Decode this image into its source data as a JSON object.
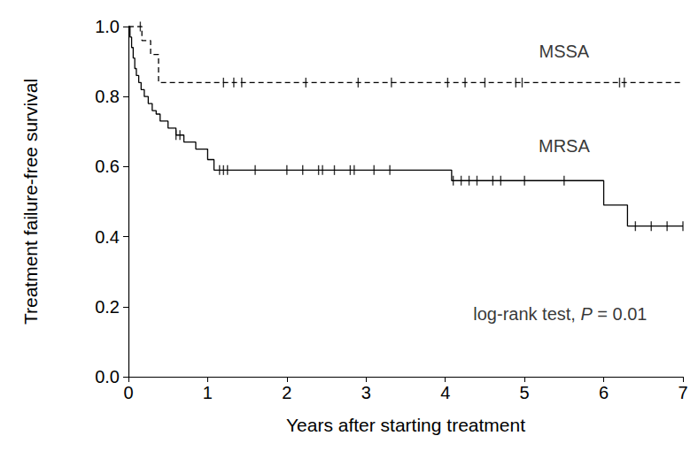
{
  "chart_data": {
    "type": "line",
    "x_label": "Years after starting treatment",
    "y_label": "Treatment failure-free survival",
    "xlim": [
      0,
      7
    ],
    "xticks": [
      0,
      1,
      2,
      3,
      4,
      5,
      6,
      7
    ],
    "ylim": [
      0,
      1
    ],
    "yticks": [
      {
        "value": 0,
        "label": "0.0"
      },
      0.2,
      0.4,
      0.6,
      0.8,
      {
        "value": 1,
        "label": "1.0"
      }
    ],
    "grid": false,
    "series": [
      {
        "name": "MSSA",
        "color": "#000000",
        "line_style": "dashed",
        "marker": "|",
        "x": [
          0,
          0.17,
          0.28,
          0.38,
          7
        ],
        "values": [
          1.0,
          0.96,
          0.92,
          0.84,
          0.84
        ],
        "censored": [
          0.15,
          1.2,
          1.33,
          1.43,
          2.24,
          2.9,
          3.32,
          4.03,
          4.25,
          4.5,
          4.89,
          4.97,
          6.2,
          6.26
        ]
      },
      {
        "name": "MRSA",
        "color": "#000000",
        "line_style": "solid",
        "marker": "|",
        "x": [
          0,
          0.02,
          0.04,
          0.06,
          0.08,
          0.1,
          0.13,
          0.16,
          0.2,
          0.25,
          0.3,
          0.35,
          0.4,
          0.5,
          0.6,
          0.7,
          0.85,
          1.0,
          1.08,
          4.08,
          6.0,
          6.3,
          7.0
        ],
        "values": [
          1.0,
          0.97,
          0.94,
          0.91,
          0.88,
          0.86,
          0.84,
          0.82,
          0.8,
          0.78,
          0.76,
          0.75,
          0.73,
          0.71,
          0.69,
          0.67,
          0.65,
          0.62,
          0.59,
          0.56,
          0.49,
          0.43,
          0.43
        ],
        "censored": [
          0.6,
          0.65,
          1.15,
          1.2,
          1.25,
          1.6,
          2.0,
          2.2,
          2.4,
          2.45,
          2.6,
          2.8,
          2.85,
          3.1,
          3.3,
          4.1,
          4.2,
          4.3,
          4.4,
          4.6,
          4.7,
          5.0,
          5.5,
          6.4,
          6.6,
          6.8,
          7.0
        ]
      }
    ],
    "annotations": [
      {
        "text": "MSSA",
        "x": 5.5,
        "y": 0.93
      },
      {
        "text": "MRSA",
        "x": 5.5,
        "y": 0.66
      },
      {
        "text": "log-rank test, P = 0.01",
        "x": 5.45,
        "y": 0.18
      }
    ]
  }
}
